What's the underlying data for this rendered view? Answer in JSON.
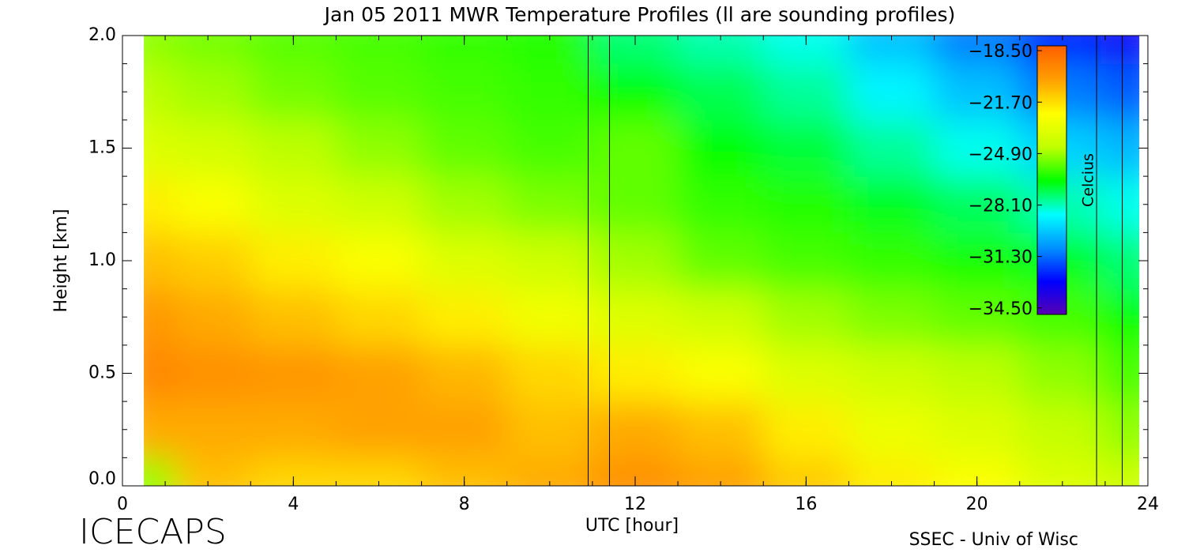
{
  "chart_data": {
    "type": "heatmap",
    "title": "Jan 05 2011 MWR Temperature Profiles (ll are sounding profiles)",
    "xlabel": "UTC [hour]",
    "ylabel": "Height [km]",
    "colorbar_label": "Celcius",
    "footer_left": "ICECAPS",
    "footer_right": "SSEC - Univ of Wisc",
    "xlim": [
      0,
      24
    ],
    "xticks": [
      0,
      4,
      8,
      12,
      16,
      20,
      24
    ],
    "ylim": [
      0,
      2
    ],
    "yticks": [
      {
        "value": 0,
        "label": "0.0"
      },
      {
        "value": 0.5,
        "label": "0.5"
      },
      {
        "value": 1,
        "label": "1.0"
      },
      {
        "value": 1.5,
        "label": "1.5"
      },
      {
        "value": 2,
        "label": "2.0"
      }
    ],
    "zlim": [
      -34.9,
      -18.2
    ],
    "zticks": [
      {
        "value": -18.5,
        "label": "−18.50"
      },
      {
        "value": -21.7,
        "label": "−21.70"
      },
      {
        "value": -24.9,
        "label": "−24.90"
      },
      {
        "value": -28.1,
        "label": "−28.10"
      },
      {
        "value": -31.3,
        "label": "−31.30"
      },
      {
        "value": -34.5,
        "label": "−34.50"
      }
    ],
    "colormap": [
      "#5a00b0",
      "#0000ff",
      "#0090ff",
      "#00ffff",
      "#00ff00",
      "#c0ff00",
      "#ffff00",
      "#ffa000",
      "#ff6000"
    ],
    "x": [
      0.5,
      2,
      4,
      6,
      8,
      10,
      12,
      14,
      16,
      18,
      20,
      22,
      23.8
    ],
    "y": [
      0,
      0.25,
      0.5,
      0.75,
      1,
      1.25,
      1.5,
      1.75,
      2
    ],
    "z": [
      [
        -25,
        -20.5,
        -19.5,
        -20,
        -21,
        -22,
        -23.5,
        -24.5,
        -25
      ],
      [
        -21,
        -20.5,
        -19.8,
        -20.5,
        -21.3,
        -22.5,
        -23.8,
        -24.8,
        -25.3
      ],
      [
        -21.5,
        -20.5,
        -20,
        -21,
        -22,
        -23.5,
        -24.5,
        -25.3,
        -25.6
      ],
      [
        -21.5,
        -20.3,
        -20.3,
        -21.5,
        -22.5,
        -24,
        -25,
        -25.6,
        -25.8
      ],
      [
        -21,
        -20.3,
        -20.8,
        -22,
        -23.5,
        -24.8,
        -25.5,
        -25.8,
        -26
      ],
      [
        -20.5,
        -21,
        -21.5,
        -22.8,
        -24,
        -25.2,
        -25.8,
        -26,
        -26.2
      ],
      [
        -19.8,
        -20.5,
        -22,
        -23.5,
        -24.8,
        -25.5,
        -25.5,
        -26.5,
        -27.5
      ],
      [
        -20.3,
        -21,
        -22.5,
        -24,
        -25.5,
        -26,
        -26.5,
        -27.2,
        -28
      ],
      [
        -21.2,
        -22,
        -23.5,
        -24.8,
        -25.8,
        -26.2,
        -27,
        -27.8,
        -28.5
      ],
      [
        -22,
        -23,
        -24,
        -25.2,
        -26,
        -26.8,
        -27.8,
        -28.8,
        -29.8
      ],
      [
        -22.5,
        -23.5,
        -24.5,
        -25.5,
        -26.3,
        -27.3,
        -28.5,
        -29.8,
        -31
      ],
      [
        -23.5,
        -24.3,
        -25,
        -25.8,
        -26.8,
        -28,
        -29.5,
        -31,
        -32.3
      ],
      [
        -24,
        -25,
        -25.8,
        -26.5,
        -27.5,
        -28.5,
        -30,
        -31.5,
        -33
      ]
    ],
    "soundings": [
      [
        10.9,
        11.4
      ],
      [
        22.8,
        23.4
      ]
    ]
  }
}
